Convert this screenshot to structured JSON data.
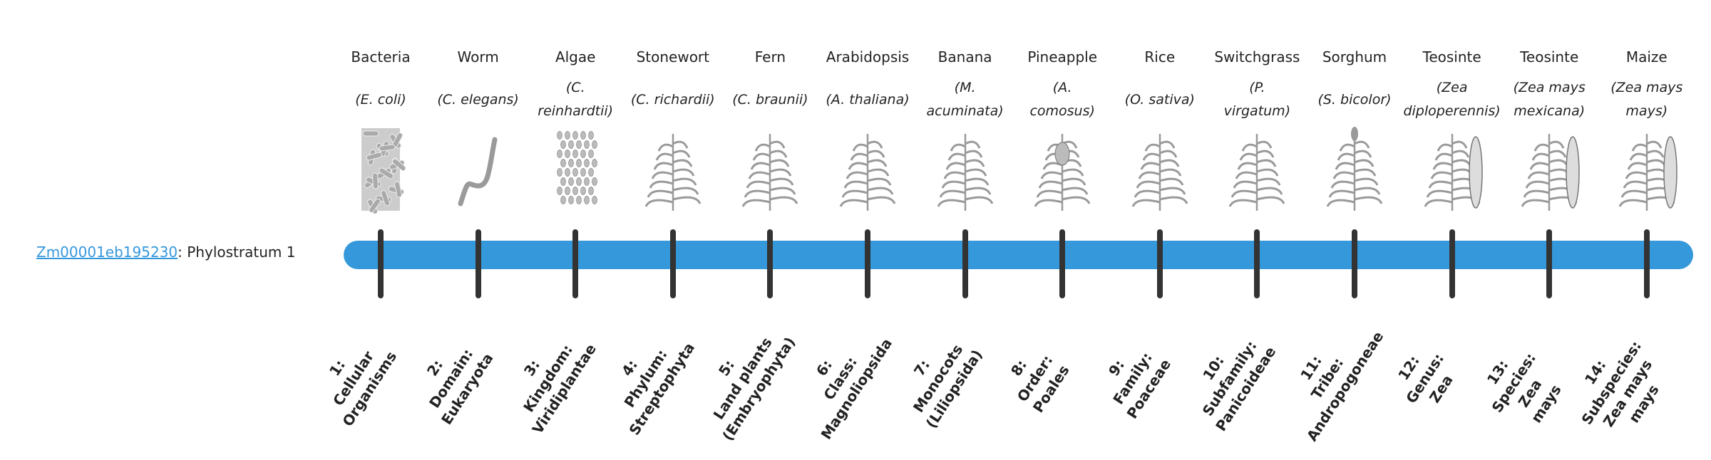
{
  "gene": {
    "id": "Zm00001eb195230",
    "suffix": ": Phylostratum 1"
  },
  "colors": {
    "bar": "#3598db",
    "tick": "#333333",
    "link": "#3598db",
    "illustration": "#9a9a9a"
  },
  "strata": [
    {
      "common": "Bacteria",
      "sci": "(E. coli)",
      "icon": "bacteria-illustration",
      "rank": [
        "1:",
        "Cellular",
        "Organisms"
      ]
    },
    {
      "common": "Worm",
      "sci": "(C. elegans)",
      "icon": "worm-illustration",
      "rank": [
        "2:",
        "Domain:",
        "Eukaryota"
      ]
    },
    {
      "common": "Algae",
      "sci": "(C.\nreinhardtii)",
      "icon": "algae-illustration",
      "rank": [
        "3:",
        "Kingdom:",
        "Viridiplantae"
      ]
    },
    {
      "common": "Stonewort",
      "sci": "(C. richardii)",
      "icon": "stonewort-illustration",
      "rank": [
        "4:",
        "Phylum:",
        "Streptophyta"
      ]
    },
    {
      "common": "Fern",
      "sci": "(C. braunii)",
      "icon": "fern-illustration",
      "rank": [
        "5:",
        "Land plants",
        "(Embryophyta)"
      ]
    },
    {
      "common": "Arabidopsis",
      "sci": "(A. thaliana)",
      "icon": "arabidopsis-illustration",
      "rank": [
        "6:",
        "Class:",
        "Magnoliopsida"
      ]
    },
    {
      "common": "Banana",
      "sci": "(M.\nacuminata)",
      "icon": "banana-illustration",
      "rank": [
        "7:",
        "Monocots",
        "(Liliopsida)"
      ]
    },
    {
      "common": "Pineapple",
      "sci": "(A.\ncomosus)",
      "icon": "pineapple-illustration",
      "rank": [
        "8:",
        "Order:",
        "Poales"
      ]
    },
    {
      "common": "Rice",
      "sci": "(O. sativa)",
      "icon": "rice-illustration",
      "rank": [
        "9:",
        "Family:",
        "Poaceae"
      ]
    },
    {
      "common": "Switchgrass",
      "sci": "(P.\nvirgatum)",
      "icon": "switchgrass-illustration",
      "rank": [
        "10:",
        "Subfamily:",
        "Panicoideae"
      ]
    },
    {
      "common": "Sorghum",
      "sci": "(S. bicolor)",
      "icon": "sorghum-illustration",
      "rank": [
        "11:",
        "Tribe:",
        "Andropogoneae"
      ]
    },
    {
      "common": "Teosinte",
      "sci": "(Zea\ndiploperennis)",
      "icon": "teosinte-illustration",
      "rank": [
        "12:",
        "Genus:",
        "Zea"
      ]
    },
    {
      "common": "Teosinte",
      "sci": "(Zea mays\nmexicana)",
      "icon": "teosinte-illustration",
      "rank": [
        "13:",
        "Species:",
        "Zea",
        "mays"
      ]
    },
    {
      "common": "Maize",
      "sci": "(Zea mays\nmays)",
      "icon": "maize-illustration",
      "rank": [
        "14:",
        "Subspecies:",
        "Zea mays",
        "mays"
      ]
    }
  ]
}
